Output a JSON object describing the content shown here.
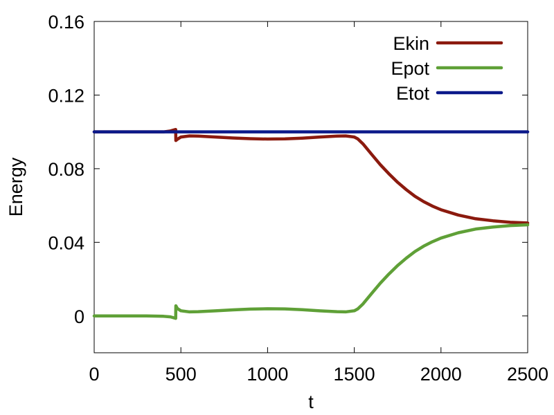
{
  "chart_data": {
    "type": "line",
    "xlabel": "t",
    "ylabel": "Energy",
    "xlim": [
      0,
      2500
    ],
    "ylim": [
      -0.02,
      0.16
    ],
    "xticks": [
      0,
      500,
      1000,
      1500,
      2000,
      2500
    ],
    "yticks": [
      0,
      0.04,
      0.08,
      0.12,
      0.16
    ],
    "ytick_labels": [
      "0",
      "0.04",
      "0.08",
      "0.12",
      "0.16"
    ],
    "grid": false,
    "legend_position": "top-right",
    "series": [
      {
        "name": "Ekin",
        "color": "#8b1a0e",
        "x": [
          0,
          100,
          200,
          300,
          400,
          440,
          470,
          471,
          480,
          500,
          550,
          600,
          700,
          800,
          900,
          1000,
          1100,
          1200,
          1300,
          1400,
          1450,
          1500,
          1520,
          1550,
          1600,
          1650,
          1700,
          1750,
          1800,
          1850,
          1900,
          1950,
          2000,
          2100,
          2200,
          2300,
          2400,
          2500
        ],
        "y": [
          0.1,
          0.1,
          0.1,
          0.1,
          0.1,
          0.1005,
          0.1013,
          0.0953,
          0.096,
          0.0972,
          0.0978,
          0.0977,
          0.0972,
          0.0967,
          0.0963,
          0.0961,
          0.0962,
          0.0966,
          0.0972,
          0.0977,
          0.0978,
          0.0972,
          0.0962,
          0.0935,
          0.0878,
          0.0822,
          0.0772,
          0.0726,
          0.0686,
          0.065,
          0.0621,
          0.0597,
          0.0577,
          0.0548,
          0.0528,
          0.0517,
          0.0509,
          0.0505
        ]
      },
      {
        "name": "Epot",
        "color": "#5fa037",
        "x": [
          0,
          100,
          200,
          300,
          400,
          440,
          470,
          471,
          480,
          500,
          550,
          600,
          700,
          800,
          900,
          1000,
          1100,
          1200,
          1300,
          1400,
          1450,
          1500,
          1520,
          1550,
          1600,
          1650,
          1700,
          1750,
          1800,
          1850,
          1900,
          1950,
          2000,
          2100,
          2200,
          2300,
          2400,
          2500
        ],
        "y": [
          0.0,
          0.0,
          0.0,
          0.0,
          -0.0002,
          -0.0005,
          -0.0013,
          0.0055,
          0.004,
          0.0028,
          0.0022,
          0.0023,
          0.0028,
          0.0033,
          0.0037,
          0.0039,
          0.0038,
          0.0034,
          0.0028,
          0.0023,
          0.0022,
          0.0028,
          0.0038,
          0.0065,
          0.0122,
          0.0178,
          0.0228,
          0.0274,
          0.0314,
          0.035,
          0.0379,
          0.0403,
          0.0423,
          0.0452,
          0.0472,
          0.0483,
          0.0491,
          0.0495
        ]
      },
      {
        "name": "Etot",
        "color": "#0c1a8a",
        "x": [
          0,
          2500
        ],
        "y": [
          0.1,
          0.1
        ]
      }
    ]
  }
}
